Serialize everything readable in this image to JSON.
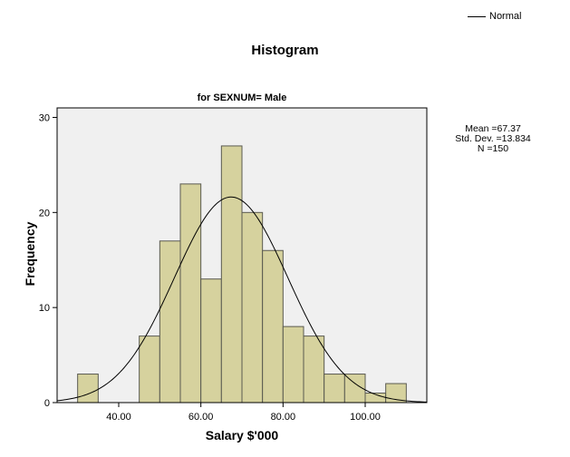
{
  "legend": {
    "label": "Normal"
  },
  "stats": {
    "mean": "Mean =67.37",
    "std": "Std. Dev. =13.834",
    "n": "N =150"
  },
  "chart_data": {
    "type": "bar",
    "title": "Histogram",
    "subtitle": "for SEXNUM= Male",
    "xlabel": "Salary $'000",
    "ylabel": "Frequency",
    "xlim": [
      25,
      115
    ],
    "ylim": [
      0,
      31
    ],
    "x_ticks": [
      40,
      60,
      80,
      100
    ],
    "x_tick_labels": [
      "40.00",
      "60.00",
      "80.00",
      "100.00"
    ],
    "y_ticks": [
      0,
      10,
      20,
      30
    ],
    "y_tick_labels": [
      "0",
      "10",
      "20",
      "30"
    ],
    "bin_width": 5,
    "bins": [
      {
        "start": 30,
        "end": 35,
        "count": 3
      },
      {
        "start": 45,
        "end": 50,
        "count": 7
      },
      {
        "start": 50,
        "end": 55,
        "count": 17
      },
      {
        "start": 55,
        "end": 60,
        "count": 23
      },
      {
        "start": 60,
        "end": 65,
        "count": 13
      },
      {
        "start": 65,
        "end": 70,
        "count": 27
      },
      {
        "start": 70,
        "end": 75,
        "count": 20
      },
      {
        "start": 75,
        "end": 80,
        "count": 16
      },
      {
        "start": 80,
        "end": 85,
        "count": 8
      },
      {
        "start": 85,
        "end": 90,
        "count": 7
      },
      {
        "start": 90,
        "end": 95,
        "count": 3
      },
      {
        "start": 95,
        "end": 100,
        "count": 3
      },
      {
        "start": 100,
        "end": 105,
        "count": 1
      },
      {
        "start": 105,
        "end": 110,
        "count": 2
      }
    ],
    "normal_curve": {
      "mean": 67.37,
      "std": 13.834,
      "n": 150
    },
    "colors": {
      "bar_fill": "#d6d29e",
      "bar_stroke": "#5a5a50",
      "plot_bg": "#f0f0f0",
      "curve": "#000000"
    },
    "grid": false
  }
}
